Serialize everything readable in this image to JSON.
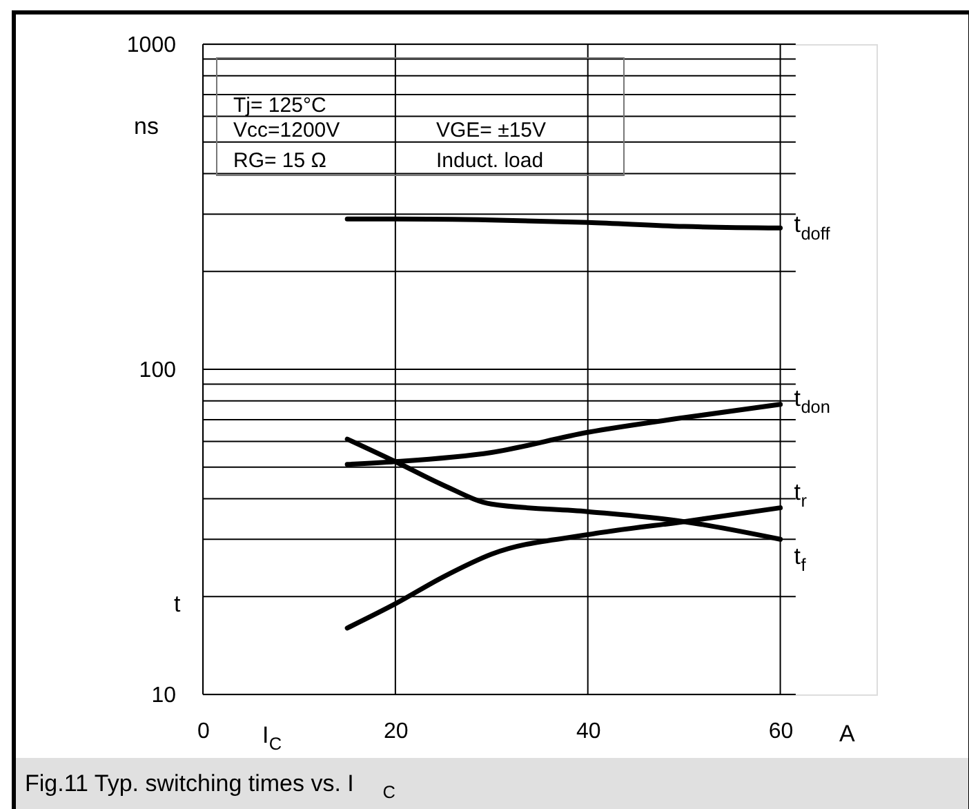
{
  "chart_data": {
    "type": "line",
    "title": "Fig.11 Typ. switching times vs. I$_{C}$",
    "xlabel": "I$_{C}$",
    "ylabel": "t",
    "annotations": [
      "Tj= 125°C",
      "Vcc=1200V",
      "VGE= ±15V",
      "RG= 15 Ω",
      "Induct. load",
      "ns",
      "A"
    ],
    "log": true,
    "grid": true,
    "legend": false,
    "marker": "none",
    "line_style": "solid",
    "xlim": [
      0,
      70
    ],
    "xticks": [
      0,
      20,
      40,
      60
    ],
    "ylim": [
      10,
      1000
    ],
    "yticks": [
      10,
      {
        "value": 20,
        "label": null
      },
      {
        "value": 30,
        "label": null
      },
      {
        "value": 40,
        "label": null
      },
      {
        "value": 50,
        "label": null
      },
      {
        "value": 60,
        "label": null
      },
      {
        "value": 70,
        "label": null
      },
      {
        "value": 80,
        "label": null
      },
      {
        "value": 90,
        "label": null
      },
      100,
      {
        "value": 200,
        "label": null
      },
      {
        "value": 300,
        "label": null
      },
      {
        "value": 400,
        "label": null
      },
      {
        "value": 500,
        "label": null
      },
      {
        "value": 600,
        "label": null
      },
      {
        "value": 700,
        "label": null
      },
      {
        "value": 800,
        "label": null
      },
      {
        "value": 900,
        "label": null
      },
      1000
    ],
    "series": [
      {
        "name": "t$_{doff}$",
        "color": "#000000",
        "x": [
          15,
          20,
          30,
          40,
          50,
          60
        ],
        "values": [
          290,
          290,
          288,
          283,
          275,
          272
        ]
      },
      {
        "name": "t$_{don}$",
        "color": "#000000",
        "x": [
          15,
          20,
          30,
          40,
          50,
          60
        ],
        "values": [
          51,
          52,
          55.5,
          64,
          71,
          78
        ]
      },
      {
        "name": "t$_{r}$",
        "color": "#000000",
        "x": [
          15,
          20,
          25,
          30,
          40,
          50,
          60
        ],
        "values": [
          16,
          19,
          23,
          27,
          31,
          34,
          37.5
        ]
      },
      {
        "name": "t$_{f}$",
        "color": "#000000",
        "x": [
          15,
          20,
          25,
          30,
          40,
          50,
          60
        ],
        "values": [
          61,
          52,
          44,
          38.5,
          36.5,
          34,
          30
        ]
      }
    ]
  }
}
